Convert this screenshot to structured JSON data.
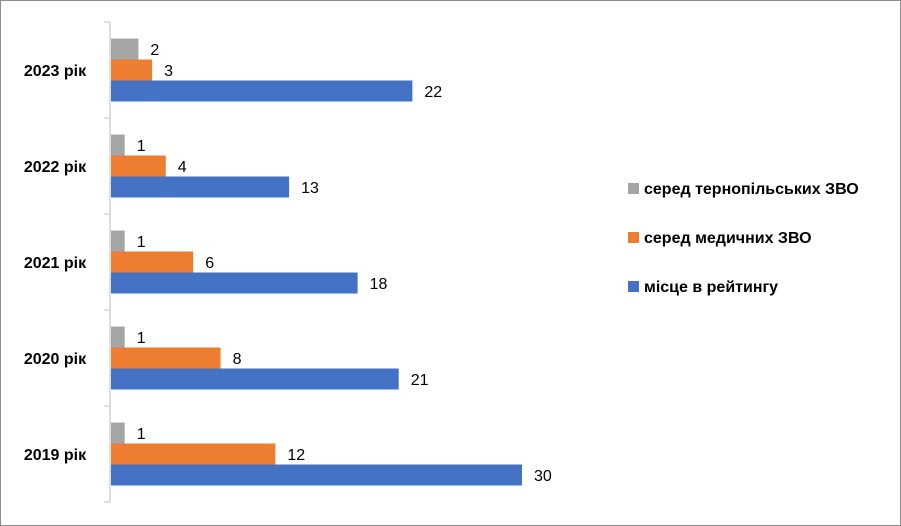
{
  "chart_data": {
    "type": "bar",
    "orientation": "horizontal",
    "categories": [
      "2023 рік",
      "2022 рік",
      "2021 рік",
      "2020 рік",
      "2019 рік"
    ],
    "series": [
      {
        "name": "серед тернопільських ЗВО",
        "color": "#a5a5a5",
        "values": [
          2,
          1,
          1,
          1,
          1
        ]
      },
      {
        "name": "серед медичних ЗВО",
        "color": "#ed7d31",
        "values": [
          3,
          4,
          6,
          8,
          12
        ]
      },
      {
        "name": "місце в рейтингу",
        "color": "#4472c4",
        "values": [
          22,
          13,
          18,
          21,
          30
        ]
      }
    ],
    "legend_position": "right",
    "legend_order": [
      "серед тернопільських ЗВО",
      "серед медичних ЗВО",
      "місце в рейтингу"
    ],
    "grid": false,
    "data_labels": true
  }
}
